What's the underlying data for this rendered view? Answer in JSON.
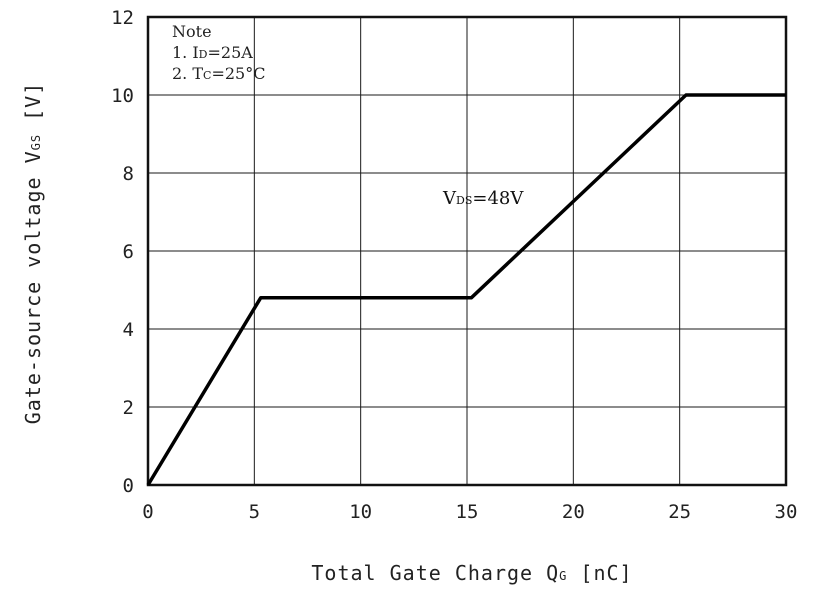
{
  "chart_data": {
    "type": "line",
    "xlabel": "Total Gate Charge Q",
    "xlabel_sub": "G",
    "xlabel_unit": " [nC]",
    "ylabel": "Gate-source voltage V",
    "ylabel_sub": "GS",
    "ylabel_unit": " [V]",
    "xlim": [
      0,
      30
    ],
    "ylim": [
      0,
      12
    ],
    "xticks": [
      "0",
      "5",
      "10",
      "15",
      "20",
      "25",
      "30"
    ],
    "yticks": [
      "0",
      "2",
      "4",
      "6",
      "8",
      "10",
      "12"
    ],
    "grid": true,
    "series": [
      {
        "label_main": "V",
        "label_sub": "DS",
        "label_value": "=48V",
        "x": [
          0,
          5.3,
          15.2,
          25.3,
          30
        ],
        "y": [
          0,
          4.8,
          4.8,
          10.0,
          10.0
        ]
      }
    ],
    "note": {
      "title": "Note",
      "line1_prefix": "1. I",
      "line1_sub": "D",
      "line1_value": "=25A",
      "line2_prefix": "2. T",
      "line2_sub": "C",
      "line2_value": "=25°C"
    }
  }
}
